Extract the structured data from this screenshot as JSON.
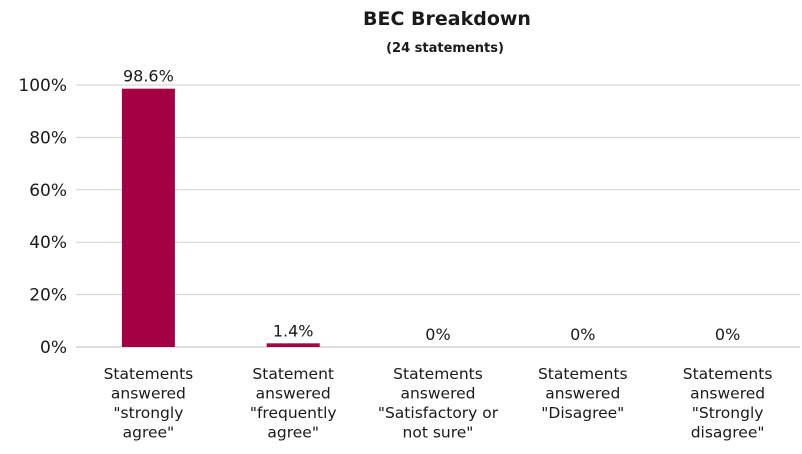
{
  "chart_data": {
    "type": "bar",
    "title": "BEC Breakdown",
    "subtitle": "(24 statements)",
    "categories": [
      "Statements answered \"strongly agree\"",
      "Statement answered \"frequently agree\"",
      "Statements answered \"Satisfactory or not sure\"",
      "Statements answered \"Disagree\"",
      "Statements answered \"Strongly disagree\""
    ],
    "category_lines": [
      [
        "Statements",
        "answered",
        "\"strongly",
        "agree\""
      ],
      [
        "Statement",
        "answered",
        "\"frequently",
        "agree\""
      ],
      [
        "Statements",
        "answered",
        "\"Satisfactory or",
        "not sure\""
      ],
      [
        "Statements",
        "answered",
        "\"Disagree\""
      ],
      [
        "Statements",
        "answered",
        "\"Strongly",
        "disagree\""
      ]
    ],
    "values": [
      98.6,
      1.4,
      0,
      0,
      0
    ],
    "data_labels": [
      "98.6%",
      "1.4%",
      "0%",
      "0%",
      "0%"
    ],
    "xlabel": "",
    "ylabel": "",
    "ylim": [
      0,
      100
    ],
    "yticks": [
      0,
      20,
      40,
      60,
      80,
      100
    ],
    "ytick_labels": [
      "0%",
      "20%",
      "40%",
      "60%",
      "80%",
      "100%"
    ],
    "grid": true,
    "legend": "none",
    "bar_color": "#a50044"
  }
}
